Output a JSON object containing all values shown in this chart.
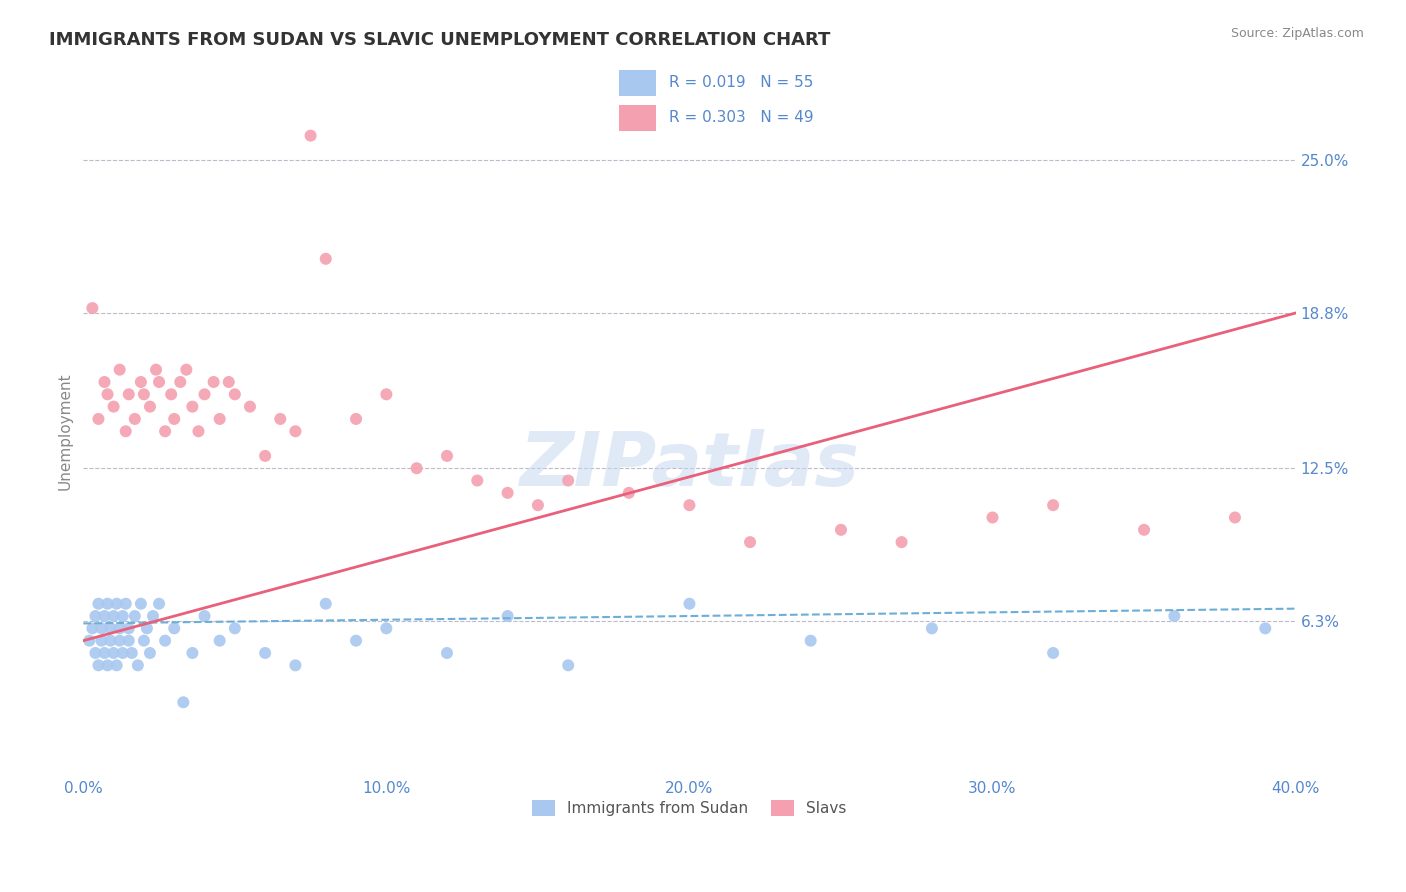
{
  "title": "IMMIGRANTS FROM SUDAN VS SLAVIC UNEMPLOYMENT CORRELATION CHART",
  "source": "Source: ZipAtlas.com",
  "ylabel": "Unemployment",
  "xlim": [
    0.0,
    0.4
  ],
  "ylim": [
    0.0,
    0.28
  ],
  "yticks": [
    0.063,
    0.125,
    0.188,
    0.25
  ],
  "ytick_labels": [
    "6.3%",
    "12.5%",
    "18.8%",
    "25.0%"
  ],
  "xticks": [
    0.0,
    0.1,
    0.2,
    0.3,
    0.4
  ],
  "xtick_labels": [
    "0.0%",
    "10.0%",
    "20.0%",
    "30.0%",
    "40.0%"
  ],
  "series1_label": "Immigrants from Sudan",
  "series1_R": "0.019",
  "series1_N": "55",
  "series1_color": "#a8c8f0",
  "series1_trend_color": "#6baed6",
  "series2_label": "Slavs",
  "series2_R": "0.303",
  "series2_N": "49",
  "series2_color": "#f4a0b0",
  "series2_trend_color": "#e8607a",
  "watermark": "ZIPatlas",
  "watermark_color": "#c8d8f0",
  "background_color": "#ffffff",
  "grid_color": "#bbbbcc",
  "title_color": "#333333",
  "axis_label_color": "#5588cc",
  "title_fontsize": 13,
  "axis_fontsize": 11,
  "series1_trend_start_x": 0.0,
  "series1_trend_end_x": 0.4,
  "series1_trend_start_y": 0.062,
  "series1_trend_end_y": 0.068,
  "series2_trend_start_x": 0.0,
  "series2_trend_end_x": 0.4,
  "series2_trend_start_y": 0.055,
  "series2_trend_end_y": 0.188,
  "series1_x": [
    0.002,
    0.003,
    0.004,
    0.004,
    0.005,
    0.005,
    0.006,
    0.006,
    0.007,
    0.007,
    0.008,
    0.008,
    0.009,
    0.009,
    0.01,
    0.01,
    0.011,
    0.011,
    0.012,
    0.012,
    0.013,
    0.013,
    0.014,
    0.015,
    0.015,
    0.016,
    0.017,
    0.018,
    0.019,
    0.02,
    0.021,
    0.022,
    0.023,
    0.025,
    0.027,
    0.03,
    0.033,
    0.036,
    0.04,
    0.045,
    0.05,
    0.06,
    0.07,
    0.08,
    0.09,
    0.1,
    0.12,
    0.14,
    0.16,
    0.2,
    0.24,
    0.28,
    0.32,
    0.36,
    0.39
  ],
  "series1_y": [
    0.055,
    0.06,
    0.05,
    0.065,
    0.045,
    0.07,
    0.055,
    0.06,
    0.05,
    0.065,
    0.045,
    0.07,
    0.055,
    0.06,
    0.05,
    0.065,
    0.045,
    0.07,
    0.055,
    0.06,
    0.05,
    0.065,
    0.07,
    0.055,
    0.06,
    0.05,
    0.065,
    0.045,
    0.07,
    0.055,
    0.06,
    0.05,
    0.065,
    0.07,
    0.055,
    0.06,
    0.03,
    0.05,
    0.065,
    0.055,
    0.06,
    0.05,
    0.045,
    0.07,
    0.055,
    0.06,
    0.05,
    0.065,
    0.045,
    0.07,
    0.055,
    0.06,
    0.05,
    0.065,
    0.06
  ],
  "series2_x": [
    0.003,
    0.005,
    0.007,
    0.008,
    0.01,
    0.012,
    0.014,
    0.015,
    0.017,
    0.019,
    0.02,
    0.022,
    0.024,
    0.025,
    0.027,
    0.029,
    0.03,
    0.032,
    0.034,
    0.036,
    0.038,
    0.04,
    0.043,
    0.045,
    0.048,
    0.05,
    0.055,
    0.06,
    0.065,
    0.07,
    0.075,
    0.08,
    0.09,
    0.1,
    0.11,
    0.12,
    0.13,
    0.14,
    0.15,
    0.16,
    0.18,
    0.2,
    0.22,
    0.25,
    0.27,
    0.3,
    0.32,
    0.35,
    0.38
  ],
  "series2_y": [
    0.19,
    0.145,
    0.16,
    0.155,
    0.15,
    0.165,
    0.14,
    0.155,
    0.145,
    0.16,
    0.155,
    0.15,
    0.165,
    0.16,
    0.14,
    0.155,
    0.145,
    0.16,
    0.165,
    0.15,
    0.14,
    0.155,
    0.16,
    0.145,
    0.16,
    0.155,
    0.15,
    0.13,
    0.145,
    0.14,
    0.26,
    0.21,
    0.145,
    0.155,
    0.125,
    0.13,
    0.12,
    0.115,
    0.11,
    0.12,
    0.115,
    0.11,
    0.095,
    0.1,
    0.095,
    0.105,
    0.11,
    0.1,
    0.105
  ]
}
